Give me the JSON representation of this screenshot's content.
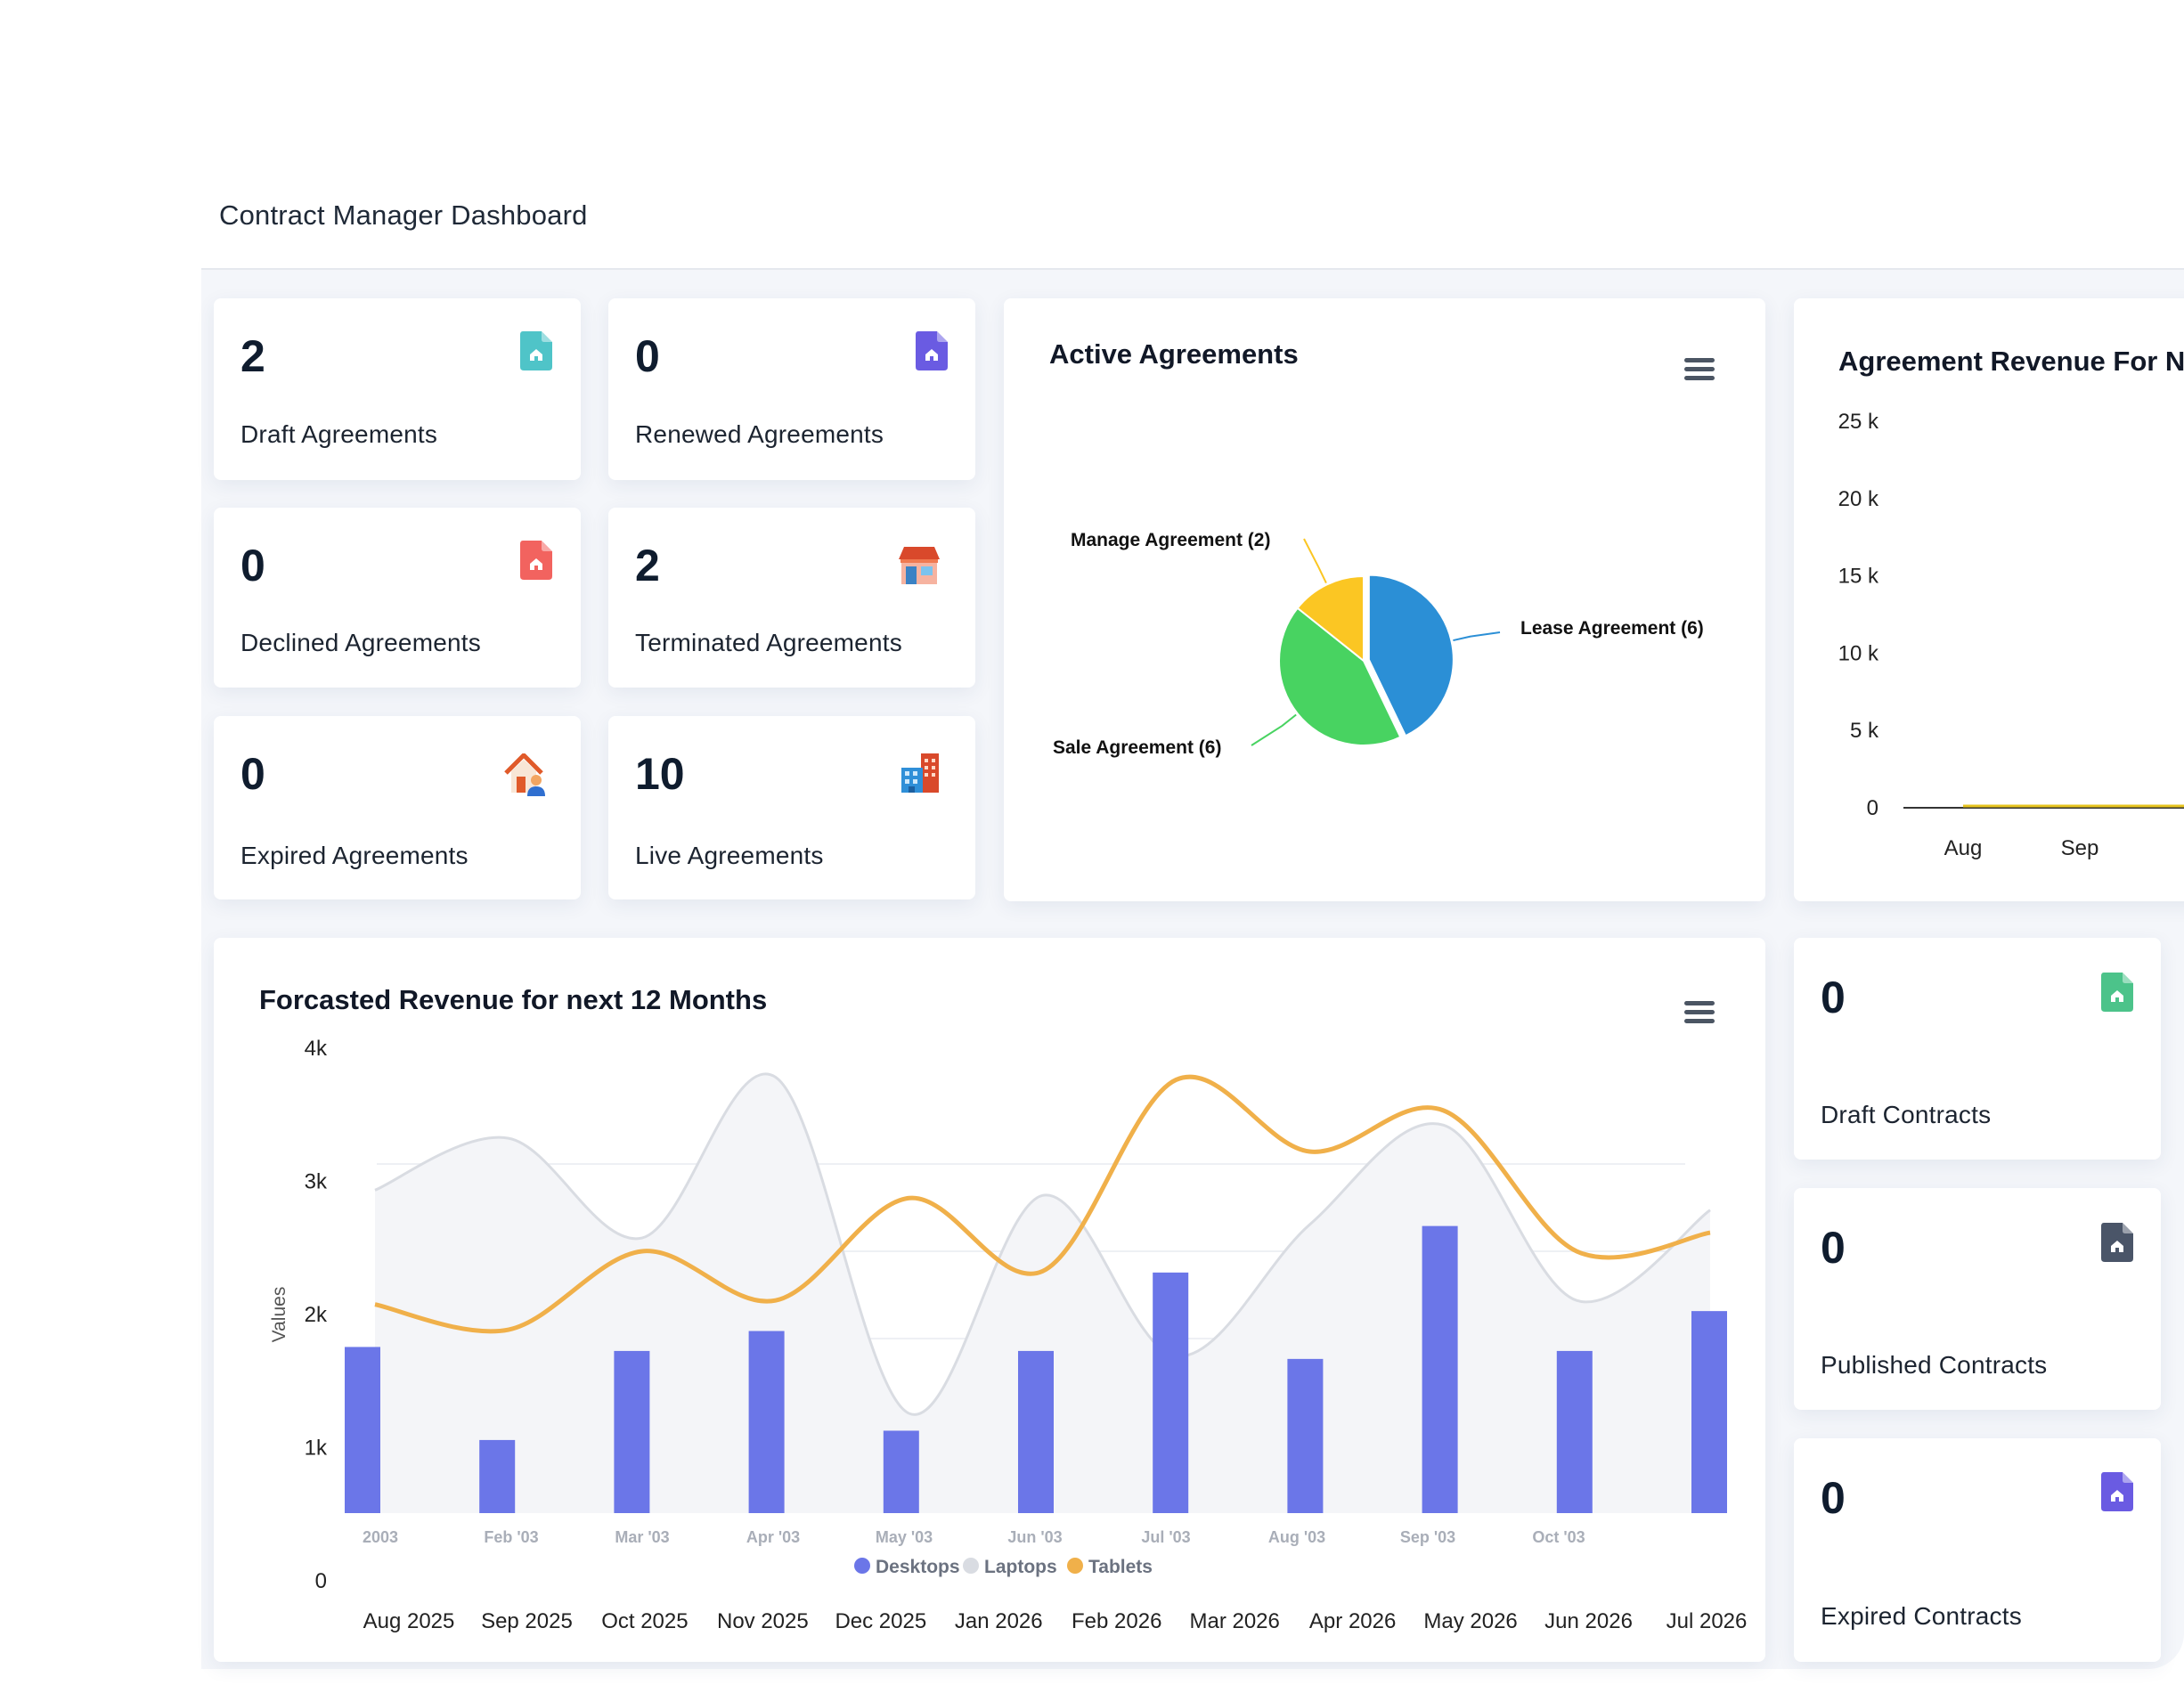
{
  "page": {
    "title": "Contract Manager Dashboard"
  },
  "stats": {
    "draft_agreements": {
      "value": "2",
      "label": "Draft Agreements",
      "icon": "document-icon",
      "color": "#4fc4c8"
    },
    "renewed_agreements": {
      "value": "0",
      "label": "Renewed Agreements",
      "icon": "document-icon",
      "color": "#6a5be2"
    },
    "declined_agreements": {
      "value": "0",
      "label": "Declined Agreements",
      "icon": "document-icon",
      "color": "#f2635f"
    },
    "terminated_agreements": {
      "value": "2",
      "label": "Terminated Agreements",
      "icon": "shop-icon",
      "color": "#d9492b"
    },
    "expired_agreements": {
      "value": "0",
      "label": "Expired Agreements",
      "icon": "house-person-icon",
      "color": "#e05a2a"
    },
    "live_agreements": {
      "value": "10",
      "label": "Live Agreements",
      "icon": "buildings-icon",
      "color": "#2f8fd8"
    },
    "draft_contracts": {
      "value": "0",
      "label": "Draft Contracts",
      "icon": "document-icon",
      "color": "#4cc38a"
    },
    "published_contracts": {
      "value": "0",
      "label": "Published Contracts",
      "icon": "document-icon",
      "color": "#4a5568"
    },
    "expired_contracts": {
      "value": "0",
      "label": "Expired Contracts",
      "icon": "document-icon",
      "color": "#6a5be2"
    }
  },
  "active_agreements": {
    "title": "Active Agreements",
    "menu_icon": "hamburger-menu-icon"
  },
  "agreement_revenue": {
    "title": "Agreement Revenue For N"
  },
  "forecast": {
    "title": "Forcasted Revenue for next 12 Months",
    "menu_icon": "hamburger-menu-icon"
  },
  "chart_data": [
    {
      "type": "pie",
      "title": "Active Agreements",
      "slices": [
        {
          "label": "Lease Agreement (6)",
          "value": 6,
          "color": "#2b8fd6"
        },
        {
          "label": "Sale Agreement (6)",
          "value": 6,
          "color": "#48d361"
        },
        {
          "label": "Manage Agreement (2)",
          "value": 2,
          "color": "#fbc623"
        }
      ]
    },
    {
      "type": "line",
      "title": "Agreement Revenue For N",
      "x": [
        "Aug",
        "Sep"
      ],
      "y_ticks": [
        "25 k",
        "20 k",
        "15 k",
        "10 k",
        "5 k",
        "0"
      ],
      "ylim": [
        0,
        25000
      ],
      "series": [
        {
          "values": [
            0,
            0
          ],
          "color": "#e6c31e"
        }
      ]
    },
    {
      "type": "bar",
      "title": "Forcasted Revenue for next 12 Months",
      "ylabel": "Values",
      "y_ticks": [
        "4k",
        "3k",
        "2k",
        "1k",
        "0"
      ],
      "x_labels": [
        "Aug 2025",
        "Sep 2025",
        "Oct 2025",
        "Nov 2025",
        "Dec 2025",
        "Jan 2026",
        "Feb 2026",
        "Mar 2026",
        "Apr 2026",
        "May 2026",
        "Jun 2026",
        "Jul 2026"
      ]
    },
    {
      "type": "area",
      "inner_x_labels": [
        "2003",
        "Feb '03",
        "Mar '03",
        "Apr '03",
        "May '03",
        "Jun '03",
        "Jul '03",
        "Aug '03",
        "Sep '03",
        "Oct '03"
      ],
      "ylim": [
        0,
        4
      ],
      "legend": {
        "position": "bottom-center"
      },
      "series": [
        {
          "name": "Desktops",
          "type": "bar",
          "color": "#6b76e8",
          "values": [
            1.25,
            0.55,
            1.22,
            1.37,
            0.62,
            1.22,
            1.81,
            1.16,
            2.16,
            1.22,
            1.52
          ]
        },
        {
          "name": "Laptops",
          "type": "area",
          "color": "#d9dce2",
          "values": [
            2.43,
            2.82,
            2.07,
            3.28,
            0.75,
            2.39,
            1.18,
            2.17,
            2.92,
            1.6,
            2.28
          ]
        },
        {
          "name": "Tablets",
          "type": "line",
          "color": "#f0b04a",
          "values": [
            1.57,
            1.38,
            1.97,
            1.6,
            2.37,
            1.82,
            3.26,
            2.72,
            3.03,
            1.97,
            2.11
          ]
        }
      ]
    }
  ]
}
